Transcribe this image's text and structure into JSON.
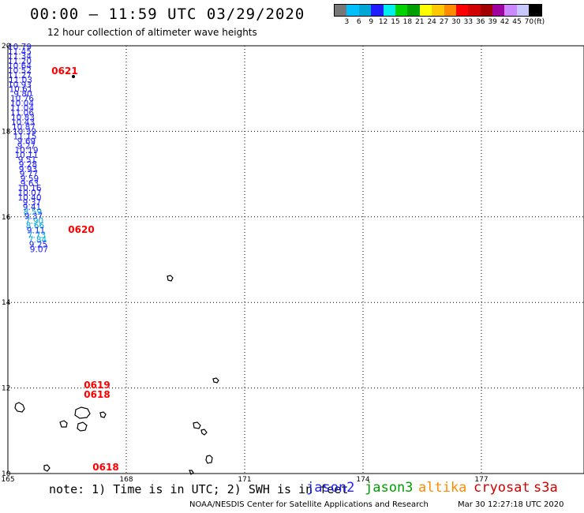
{
  "header": {
    "title": "00:00 – 11:59 UTC 03/29/2020",
    "subtitle": "12 hour collection of altimeter wave heights"
  },
  "legend": {
    "unit": "(ft)",
    "colors": [
      "#777777",
      "#00bfff",
      "#00a6d6",
      "#1e1eff",
      "#00eeee",
      "#00d200",
      "#00a000",
      "#ffff00",
      "#ffc800",
      "#ff8c00",
      "#ff0000",
      "#d20000",
      "#a00000",
      "#a000a0",
      "#cc88ff",
      "#c8c8ff",
      "#000000"
    ],
    "ticks": [
      "3",
      "6",
      "9",
      "12",
      "15",
      "18",
      "21",
      "24",
      "27",
      "30",
      "33",
      "36",
      "39",
      "42",
      "45",
      "70"
    ]
  },
  "axes": {
    "x_ticks": [
      "165",
      "168",
      "171",
      "174",
      "177"
    ],
    "y_ticks": [
      "20",
      "18",
      "16",
      "14",
      "12",
      "10"
    ]
  },
  "map": {
    "tracks": [
      {
        "labels": [
          "0621"
        ],
        "color": "#ff0000",
        "points": [
          {
            "lon": 165.3,
            "lat": 19.98,
            "v": "10.79",
            "c": "#1e1eff"
          },
          {
            "lon": 165.3,
            "lat": 19.87,
            "v": "11.45",
            "c": "#1e1eff"
          },
          {
            "lon": 165.3,
            "lat": 19.76,
            "v": "11.34",
            "c": "#1e1eff"
          },
          {
            "lon": 165.3,
            "lat": 19.65,
            "v": "11.20",
            "c": "#1e1eff"
          },
          {
            "lon": 165.3,
            "lat": 19.54,
            "v": "10.64",
            "c": "#1e1eff"
          },
          {
            "lon": 165.3,
            "lat": 19.43,
            "v": "10.52",
            "c": "#1e1eff"
          },
          {
            "lon": 165.3,
            "lat": 19.32,
            "v": "11.27",
            "c": "#1e1eff"
          },
          {
            "lon": 165.32,
            "lat": 19.21,
            "v": "11.03",
            "c": "#1e1eff"
          },
          {
            "lon": 165.3,
            "lat": 19.1,
            "v": "10.93",
            "c": "#1e1eff"
          },
          {
            "lon": 165.33,
            "lat": 18.99,
            "v": "10.61",
            "c": "#1e1eff"
          },
          {
            "lon": 165.38,
            "lat": 18.88,
            "v": "9.80",
            "c": "#1e1eff"
          },
          {
            "lon": 165.36,
            "lat": 18.77,
            "v": "10.76",
            "c": "#1e1eff"
          },
          {
            "lon": 165.36,
            "lat": 18.66,
            "v": "10.04",
            "c": "#1e1eff"
          },
          {
            "lon": 165.36,
            "lat": 18.55,
            "v": "11.04",
            "c": "#1e1eff"
          },
          {
            "lon": 165.36,
            "lat": 18.44,
            "v": "11.06",
            "c": "#1e1eff"
          },
          {
            "lon": 165.38,
            "lat": 18.33,
            "v": "10.83",
            "c": "#1e1eff"
          },
          {
            "lon": 165.38,
            "lat": 18.22,
            "v": "10.43",
            "c": "#1e1eff"
          },
          {
            "lon": 165.4,
            "lat": 18.11,
            "v": "10.87",
            "c": "#1e1eff"
          },
          {
            "lon": 165.42,
            "lat": 18.0,
            "v": "10.39",
            "c": "#1e1eff"
          },
          {
            "lon": 165.43,
            "lat": 17.89,
            "v": "11.15",
            "c": "#1e1eff"
          },
          {
            "lon": 165.47,
            "lat": 17.78,
            "v": "9.69",
            "c": "#1e1eff"
          },
          {
            "lon": 165.47,
            "lat": 17.67,
            "v": "9.27",
            "c": "#1e1eff"
          },
          {
            "lon": 165.47,
            "lat": 17.56,
            "v": "10.19",
            "c": "#1e1eff"
          },
          {
            "lon": 165.47,
            "lat": 17.45,
            "v": "10.11",
            "c": "#1e1eff"
          },
          {
            "lon": 165.49,
            "lat": 17.34,
            "v": "9.51",
            "c": "#1e1eff"
          },
          {
            "lon": 165.51,
            "lat": 17.23,
            "v": "9.28",
            "c": "#1e1eff"
          },
          {
            "lon": 165.51,
            "lat": 17.12,
            "v": "9.93",
            "c": "#1e1eff"
          },
          {
            "lon": 165.53,
            "lat": 17.01,
            "v": "9.77",
            "c": "#1e1eff"
          },
          {
            "lon": 165.55,
            "lat": 16.9,
            "v": "9.59",
            "c": "#1e1eff"
          },
          {
            "lon": 165.55,
            "lat": 16.79,
            "v": "9.63",
            "c": "#1e1eff"
          },
          {
            "lon": 165.55,
            "lat": 16.68,
            "v": "10.16",
            "c": "#1e1eff"
          },
          {
            "lon": 165.55,
            "lat": 16.57,
            "v": "10.07",
            "c": "#1e1eff"
          },
          {
            "lon": 165.55,
            "lat": 16.46,
            "v": "10.40",
            "c": "#1e1eff"
          },
          {
            "lon": 165.61,
            "lat": 16.35,
            "v": "9.37",
            "c": "#1e1eff"
          },
          {
            "lon": 165.61,
            "lat": 16.24,
            "v": "9.41",
            "c": "#1e1eff"
          },
          {
            "lon": 165.63,
            "lat": 16.13,
            "v": "8.59",
            "c": "#00a6d6"
          },
          {
            "lon": 165.65,
            "lat": 16.02,
            "v": "9.37",
            "c": "#1e1eff"
          },
          {
            "lon": 165.67,
            "lat": 15.91,
            "v": "7.90",
            "c": "#00a6d6"
          },
          {
            "lon": 165.69,
            "lat": 15.8,
            "v": "8.66",
            "c": "#00a6d6"
          },
          {
            "lon": 165.71,
            "lat": 15.69,
            "v": "9.11",
            "c": "#1e1eff"
          },
          {
            "lon": 165.73,
            "lat": 15.58,
            "v": "7.73",
            "c": "#00a6d6"
          },
          {
            "lon": 165.75,
            "lat": 15.47,
            "v": "7.84",
            "c": "#00a6d6"
          },
          {
            "lon": 165.77,
            "lat": 15.36,
            "v": "9.25",
            "c": "#1e1eff"
          },
          {
            "lon": 165.79,
            "lat": 15.25,
            "v": "9.07",
            "c": "#1e1eff"
          }
        ]
      }
    ]
  }
}
